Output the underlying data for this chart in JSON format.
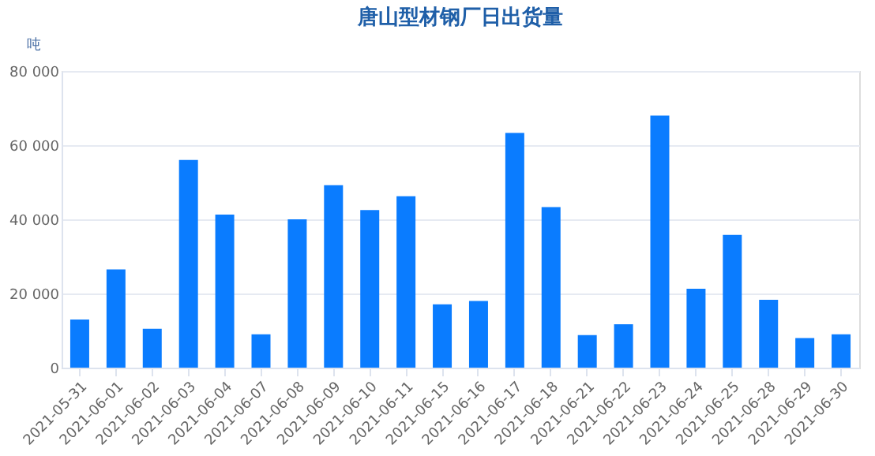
{
  "chart_data": {
    "type": "bar",
    "title": "唐山型材钢厂日出货量",
    "ylabel": "吨",
    "categories": [
      "2021-05-31",
      "2021-06-01",
      "2021-06-02",
      "2021-06-03",
      "2021-06-04",
      "2021-06-07",
      "2021-06-08",
      "2021-06-09",
      "2021-06-10",
      "2021-06-11",
      "2021-06-15",
      "2021-06-16",
      "2021-06-17",
      "2021-06-18",
      "2021-06-21",
      "2021-06-22",
      "2021-06-23",
      "2021-06-24",
      "2021-06-25",
      "2021-06-28",
      "2021-06-29",
      "2021-06-30"
    ],
    "values": [
      13000,
      26500,
      10500,
      56000,
      41300,
      9000,
      40000,
      49200,
      42500,
      46200,
      17100,
      18000,
      63300,
      43300,
      8800,
      11700,
      68000,
      21300,
      35800,
      18300,
      8000,
      9000
    ],
    "color": "#0a7cff",
    "ylim": [
      0,
      80000
    ],
    "yticks": [
      0,
      {
        "value": 20000,
        "label": "20 000"
      },
      {
        "value": 40000,
        "label": "40 000"
      },
      {
        "value": 60000,
        "label": "60 000"
      },
      {
        "value": 80000,
        "label": "80 000"
      }
    ],
    "grid": "y"
  }
}
